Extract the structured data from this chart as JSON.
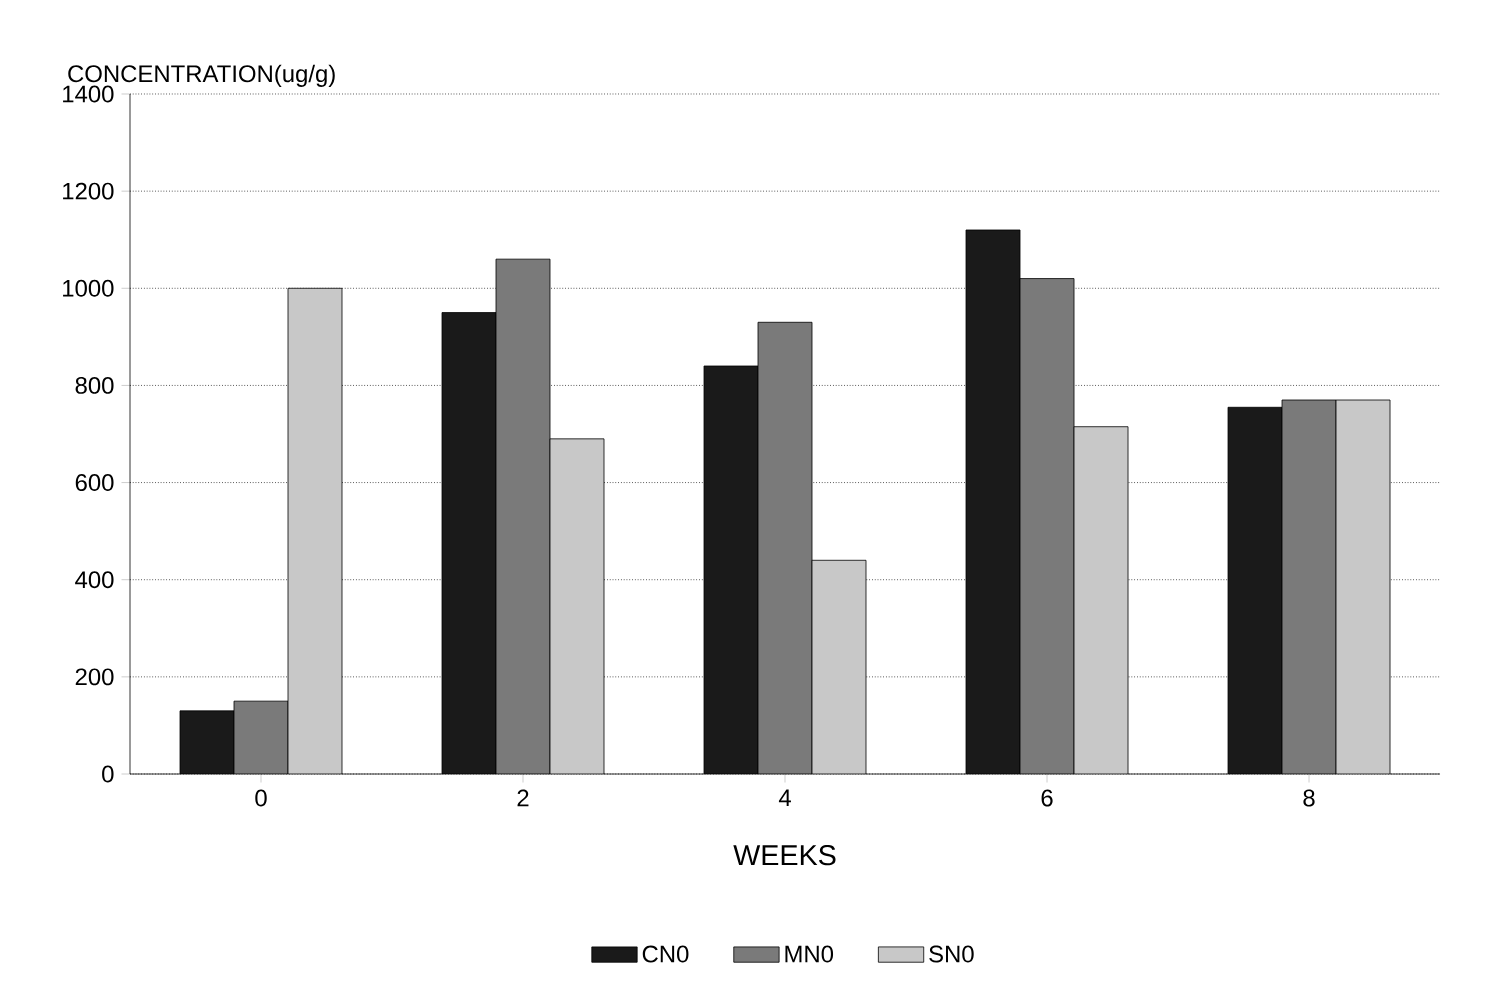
{
  "chart_data": {
    "type": "bar",
    "ylabel": "CONCENTRATION(ug/g)",
    "xlabel": "WEEKS",
    "categories": [
      "0",
      "2",
      "4",
      "6",
      "8"
    ],
    "series": [
      {
        "name": "CN0",
        "color": "#1a1a1a",
        "values": [
          130,
          950,
          840,
          1120,
          755
        ]
      },
      {
        "name": "MN0",
        "color": "#7a7a7a",
        "values": [
          150,
          1060,
          930,
          1020,
          770
        ]
      },
      {
        "name": "SN0",
        "color": "#c8c8c8",
        "values": [
          1000,
          690,
          440,
          715,
          770
        ]
      }
    ],
    "ylim": [
      0,
      1400
    ],
    "yticks": [
      0,
      200,
      400,
      600,
      800,
      1000,
      1200,
      1400
    ],
    "grid": "y",
    "legend": "bottom"
  }
}
